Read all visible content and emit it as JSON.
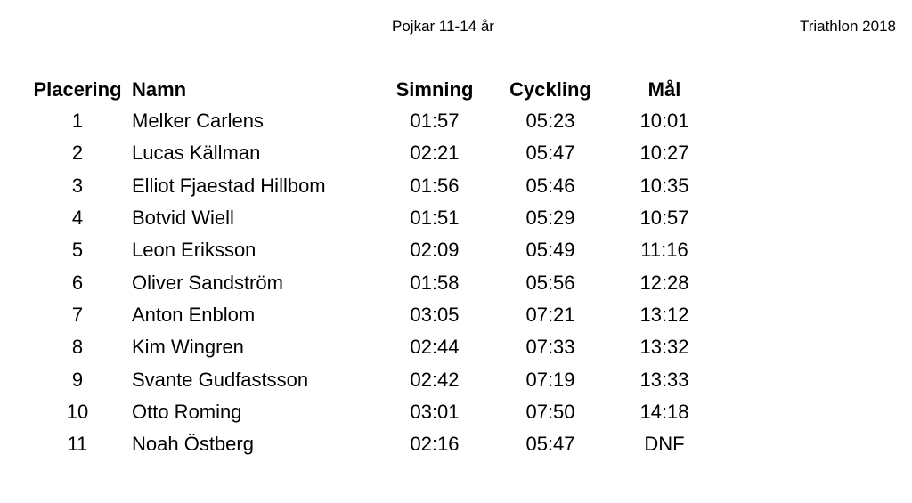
{
  "header": {
    "subtitle": "Pojkar 11-14 år",
    "title": "Triathlon 2018"
  },
  "table": {
    "columns": [
      "Placering",
      "Namn",
      "Simning",
      "Cyckling",
      "Mål"
    ],
    "rows": [
      {
        "placering": "1",
        "namn": "Melker Carlens",
        "simning": "01:57",
        "cyckling": "05:23",
        "mal": "10:01"
      },
      {
        "placering": "2",
        "namn": "Lucas Källman",
        "simning": "02:21",
        "cyckling": "05:47",
        "mal": "10:27"
      },
      {
        "placering": "3",
        "namn": "Elliot Fjaestad Hillbom",
        "simning": "01:56",
        "cyckling": "05:46",
        "mal": "10:35"
      },
      {
        "placering": "4",
        "namn": "Botvid Wiell",
        "simning": "01:51",
        "cyckling": "05:29",
        "mal": "10:57"
      },
      {
        "placering": "5",
        "namn": "Leon Eriksson",
        "simning": "02:09",
        "cyckling": "05:49",
        "mal": "11:16"
      },
      {
        "placering": "6",
        "namn": "Oliver Sandström",
        "simning": "01:58",
        "cyckling": "05:56",
        "mal": "12:28"
      },
      {
        "placering": "7",
        "namn": "Anton Enblom",
        "simning": "03:05",
        "cyckling": "07:21",
        "mal": "13:12"
      },
      {
        "placering": "8",
        "namn": "Kim Wingren",
        "simning": "02:44",
        "cyckling": "07:33",
        "mal": "13:32"
      },
      {
        "placering": "9",
        "namn": "Svante Gudfastsson",
        "simning": "02:42",
        "cyckling": "07:19",
        "mal": "13:33"
      },
      {
        "placering": "10",
        "namn": "Otto Roming",
        "simning": "03:01",
        "cyckling": "07:50",
        "mal": "14:18"
      },
      {
        "placering": "11",
        "namn": "Noah Östberg",
        "simning": "02:16",
        "cyckling": "05:47",
        "mal": "DNF"
      }
    ]
  }
}
